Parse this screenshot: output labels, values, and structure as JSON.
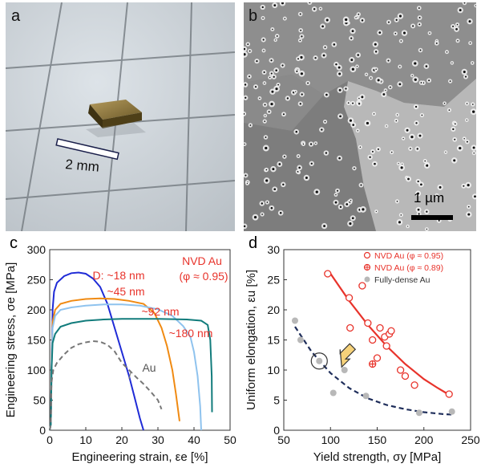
{
  "panels": {
    "a": {
      "label": "a",
      "scale_text": "2 mm"
    },
    "b": {
      "label": "b",
      "scale_text": "1 µm"
    },
    "c": {
      "label": "c"
    },
    "d": {
      "label": "d"
    }
  },
  "chart_data": [
    {
      "type": "line",
      "panel": "c",
      "xlabel": "Engineering strain, εe [%]",
      "ylabel": "Engineering stress, σe [MPa]",
      "xlim": [
        0,
        50
      ],
      "ylim": [
        0,
        300
      ],
      "xticks": [
        "0",
        "10",
        "20",
        "30",
        "40",
        "50"
      ],
      "yticks": [
        "0",
        "50",
        "100",
        "150",
        "200",
        "250",
        "300"
      ],
      "legend_title": "NVD Au",
      "legend_subtitle": "(φ ≈ 0.95)",
      "series": [
        {
          "name": "D: ~18 nm",
          "color": "#1f2bd6",
          "dash": false,
          "points": [
            [
              0,
              0
            ],
            [
              0.3,
              10
            ],
            [
              0.5,
              100
            ],
            [
              0.8,
              200
            ],
            [
              1.2,
              230
            ],
            [
              2,
              245
            ],
            [
              4,
              256
            ],
            [
              6,
              261
            ],
            [
              8,
              262
            ],
            [
              10,
              260
            ],
            [
              12,
              252
            ],
            [
              14,
              238
            ],
            [
              16,
              210
            ],
            [
              18,
              170
            ],
            [
              20,
              130
            ],
            [
              22,
              90
            ],
            [
              23.5,
              55
            ],
            [
              25,
              20
            ],
            [
              26,
              0
            ]
          ]
        },
        {
          "name": "~45 nm",
          "color": "#f08a12",
          "dash": false,
          "points": [
            [
              0,
              0
            ],
            [
              0.3,
              10
            ],
            [
              0.5,
              100
            ],
            [
              0.8,
              180
            ],
            [
              1.5,
              200
            ],
            [
              3,
              210
            ],
            [
              6,
              215
            ],
            [
              10,
              218
            ],
            [
              14,
              219
            ],
            [
              18,
              218
            ],
            [
              22,
              215
            ],
            [
              26,
              210
            ],
            [
              29,
              195
            ],
            [
              31,
              170
            ],
            [
              32.5,
              140
            ],
            [
              34,
              100
            ],
            [
              35,
              60
            ],
            [
              36,
              15
            ]
          ]
        },
        {
          "name": "~92 nm",
          "color": "#8fc3ee",
          "dash": false,
          "points": [
            [
              0,
              0
            ],
            [
              0.3,
              10
            ],
            [
              0.5,
              100
            ],
            [
              0.8,
              170
            ],
            [
              1.5,
              190
            ],
            [
              3,
              200
            ],
            [
              6,
              204
            ],
            [
              10,
              207
            ],
            [
              15,
              209
            ],
            [
              20,
              209
            ],
            [
              25,
              207
            ],
            [
              30,
              201
            ],
            [
              34,
              190
            ],
            [
              37,
              173
            ],
            [
              39,
              155
            ],
            [
              40,
              130
            ],
            [
              41,
              90
            ],
            [
              41.7,
              40
            ],
            [
              42,
              0
            ]
          ]
        },
        {
          "name": "~180 nm",
          "color": "#127c7c",
          "dash": false,
          "points": [
            [
              0,
              0
            ],
            [
              0.3,
              10
            ],
            [
              0.5,
              100
            ],
            [
              0.8,
              145
            ],
            [
              1.5,
              160
            ],
            [
              3,
              172
            ],
            [
              6,
              178
            ],
            [
              10,
              182
            ],
            [
              15,
              184
            ],
            [
              20,
              185
            ],
            [
              30,
              185
            ],
            [
              38,
              184
            ],
            [
              42,
              182
            ],
            [
              43.8,
              175
            ],
            [
              44.5,
              150
            ],
            [
              44.9,
              90
            ],
            [
              45,
              30
            ]
          ]
        },
        {
          "name": "Au",
          "color": "#777777",
          "dash": true,
          "points": [
            [
              0,
              0
            ],
            [
              0.3,
              10
            ],
            [
              0.5,
              80
            ],
            [
              1,
              100
            ],
            [
              2,
              112
            ],
            [
              4,
              126
            ],
            [
              6,
              137
            ],
            [
              8,
              143
            ],
            [
              10,
              146
            ],
            [
              12,
              148
            ],
            [
              14,
              147
            ],
            [
              16,
              142
            ],
            [
              18,
              131
            ],
            [
              20,
              112
            ],
            [
              22,
              100
            ],
            [
              24,
              88
            ],
            [
              26,
              77
            ],
            [
              28,
              64
            ],
            [
              30,
              50
            ],
            [
              31,
              35
            ]
          ]
        }
      ]
    },
    {
      "type": "scatter",
      "panel": "d",
      "xlabel": "Yield strength, σy [MPa]",
      "ylabel": "Uniform elongation, εu [%]",
      "xlim": [
        50,
        250
      ],
      "ylim": [
        0,
        30
      ],
      "xticks": [
        "50",
        "100",
        "150",
        "200",
        "250"
      ],
      "yticks": [
        "0",
        "5",
        "10",
        "15",
        "20",
        "25",
        "30"
      ],
      "legend": [
        {
          "name": "NVD Au (φ ≈ 0.95)",
          "marker": "open-circle",
          "color": "#e8332b"
        },
        {
          "name": "NVD Au (φ ≈ 0.89)",
          "marker": "crossed-circle",
          "color": "#e8332b"
        },
        {
          "name": "Fully-dense Au",
          "marker": "filled-circle",
          "color": "#b8b8b8"
        }
      ],
      "series": [
        {
          "name": "NVD Au (φ ≈ 0.95)",
          "marker": "open-circle",
          "color": "#e8332b",
          "points": [
            [
              97,
              26
            ],
            [
              120,
              22
            ],
            [
              121,
              17
            ],
            [
              134,
              24
            ],
            [
              140,
              17.8
            ],
            [
              145,
              15
            ],
            [
              150,
              12
            ],
            [
              153,
              17
            ],
            [
              158,
              15.5
            ],
            [
              160,
              14
            ],
            [
              163,
              16
            ],
            [
              165,
              16.5
            ],
            [
              175,
              10
            ],
            [
              180,
              9
            ],
            [
              190,
              7.5
            ],
            [
              227,
              6
            ]
          ]
        },
        {
          "name": "NVD Au (φ ≈ 0.89)",
          "marker": "crossed-circle",
          "color": "#e8332b",
          "points": [
            [
              145,
              11
            ]
          ]
        },
        {
          "name": "Fully-dense Au",
          "marker": "filled-circle",
          "color": "#b8b8b8",
          "points": [
            [
              62,
              18.2
            ],
            [
              68,
              15
            ],
            [
              88,
              11.5
            ],
            [
              103,
              6.2
            ],
            [
              115,
              10
            ],
            [
              138,
              5.7
            ],
            [
              195,
              2.9
            ],
            [
              230,
              3.1
            ]
          ]
        }
      ],
      "fits": [
        {
          "color": "#e8332b",
          "dash": false,
          "points": [
            [
              100,
              26
            ],
            [
              120,
              21.5
            ],
            [
              140,
              17.5
            ],
            [
              160,
              14
            ],
            [
              180,
              11
            ],
            [
              200,
              8.5
            ],
            [
              215,
              7
            ],
            [
              228,
              5.8
            ]
          ]
        },
        {
          "color": "#1e2d5a",
          "dash": true,
          "points": [
            [
              62,
              17.2
            ],
            [
              80,
              13
            ],
            [
              100,
              9.5
            ],
            [
              120,
              7
            ],
            [
              140,
              5.3
            ],
            [
              160,
              4.2
            ],
            [
              180,
              3.5
            ],
            [
              200,
              3
            ],
            [
              220,
              2.7
            ],
            [
              230,
              2.6
            ]
          ]
        }
      ],
      "highlight_circle": [
        88,
        11.5
      ]
    }
  ]
}
